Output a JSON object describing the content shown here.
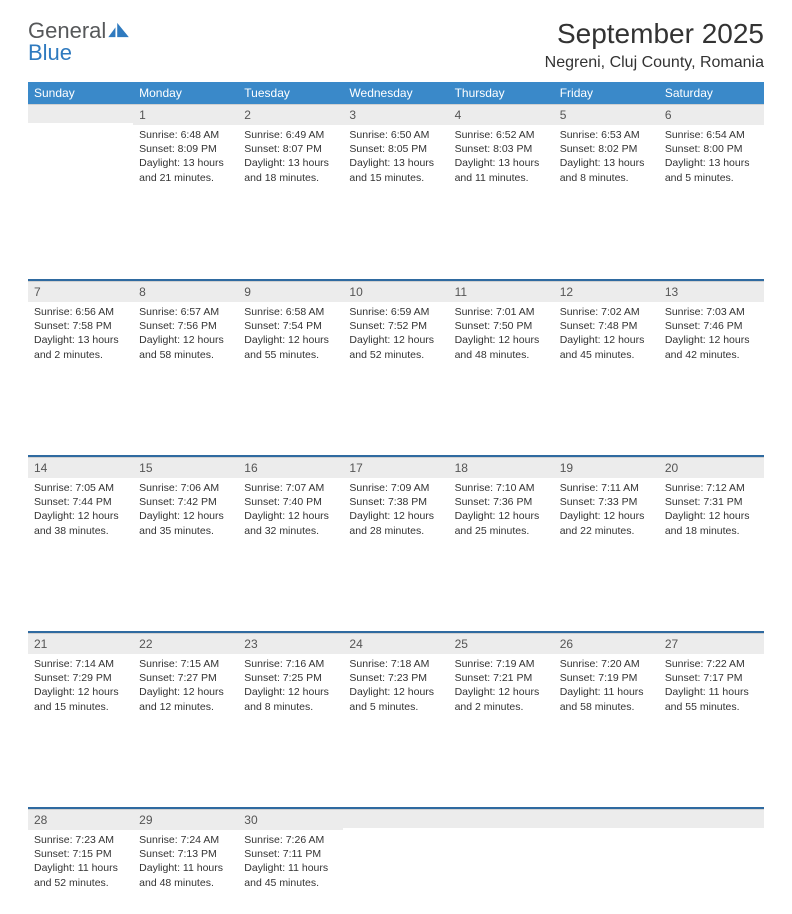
{
  "brand": {
    "word1": "General",
    "word2": "Blue"
  },
  "title": "September 2025",
  "location": "Negreni, Cluj County, Romania",
  "colors": {
    "header_bg": "#3a89c9",
    "header_text": "#ffffff",
    "daynum_bg": "#ececec",
    "separator": "#2f6aa0",
    "brand_gray": "#56585a",
    "brand_blue": "#2f7abf"
  },
  "day_headers": [
    "Sunday",
    "Monday",
    "Tuesday",
    "Wednesday",
    "Thursday",
    "Friday",
    "Saturday"
  ],
  "weeks": [
    [
      {
        "n": "",
        "sunrise": "",
        "sunset": "",
        "daylight": ""
      },
      {
        "n": "1",
        "sunrise": "Sunrise: 6:48 AM",
        "sunset": "Sunset: 8:09 PM",
        "daylight": "Daylight: 13 hours and 21 minutes."
      },
      {
        "n": "2",
        "sunrise": "Sunrise: 6:49 AM",
        "sunset": "Sunset: 8:07 PM",
        "daylight": "Daylight: 13 hours and 18 minutes."
      },
      {
        "n": "3",
        "sunrise": "Sunrise: 6:50 AM",
        "sunset": "Sunset: 8:05 PM",
        "daylight": "Daylight: 13 hours and 15 minutes."
      },
      {
        "n": "4",
        "sunrise": "Sunrise: 6:52 AM",
        "sunset": "Sunset: 8:03 PM",
        "daylight": "Daylight: 13 hours and 11 minutes."
      },
      {
        "n": "5",
        "sunrise": "Sunrise: 6:53 AM",
        "sunset": "Sunset: 8:02 PM",
        "daylight": "Daylight: 13 hours and 8 minutes."
      },
      {
        "n": "6",
        "sunrise": "Sunrise: 6:54 AM",
        "sunset": "Sunset: 8:00 PM",
        "daylight": "Daylight: 13 hours and 5 minutes."
      }
    ],
    [
      {
        "n": "7",
        "sunrise": "Sunrise: 6:56 AM",
        "sunset": "Sunset: 7:58 PM",
        "daylight": "Daylight: 13 hours and 2 minutes."
      },
      {
        "n": "8",
        "sunrise": "Sunrise: 6:57 AM",
        "sunset": "Sunset: 7:56 PM",
        "daylight": "Daylight: 12 hours and 58 minutes."
      },
      {
        "n": "9",
        "sunrise": "Sunrise: 6:58 AM",
        "sunset": "Sunset: 7:54 PM",
        "daylight": "Daylight: 12 hours and 55 minutes."
      },
      {
        "n": "10",
        "sunrise": "Sunrise: 6:59 AM",
        "sunset": "Sunset: 7:52 PM",
        "daylight": "Daylight: 12 hours and 52 minutes."
      },
      {
        "n": "11",
        "sunrise": "Sunrise: 7:01 AM",
        "sunset": "Sunset: 7:50 PM",
        "daylight": "Daylight: 12 hours and 48 minutes."
      },
      {
        "n": "12",
        "sunrise": "Sunrise: 7:02 AM",
        "sunset": "Sunset: 7:48 PM",
        "daylight": "Daylight: 12 hours and 45 minutes."
      },
      {
        "n": "13",
        "sunrise": "Sunrise: 7:03 AM",
        "sunset": "Sunset: 7:46 PM",
        "daylight": "Daylight: 12 hours and 42 minutes."
      }
    ],
    [
      {
        "n": "14",
        "sunrise": "Sunrise: 7:05 AM",
        "sunset": "Sunset: 7:44 PM",
        "daylight": "Daylight: 12 hours and 38 minutes."
      },
      {
        "n": "15",
        "sunrise": "Sunrise: 7:06 AM",
        "sunset": "Sunset: 7:42 PM",
        "daylight": "Daylight: 12 hours and 35 minutes."
      },
      {
        "n": "16",
        "sunrise": "Sunrise: 7:07 AM",
        "sunset": "Sunset: 7:40 PM",
        "daylight": "Daylight: 12 hours and 32 minutes."
      },
      {
        "n": "17",
        "sunrise": "Sunrise: 7:09 AM",
        "sunset": "Sunset: 7:38 PM",
        "daylight": "Daylight: 12 hours and 28 minutes."
      },
      {
        "n": "18",
        "sunrise": "Sunrise: 7:10 AM",
        "sunset": "Sunset: 7:36 PM",
        "daylight": "Daylight: 12 hours and 25 minutes."
      },
      {
        "n": "19",
        "sunrise": "Sunrise: 7:11 AM",
        "sunset": "Sunset: 7:33 PM",
        "daylight": "Daylight: 12 hours and 22 minutes."
      },
      {
        "n": "20",
        "sunrise": "Sunrise: 7:12 AM",
        "sunset": "Sunset: 7:31 PM",
        "daylight": "Daylight: 12 hours and 18 minutes."
      }
    ],
    [
      {
        "n": "21",
        "sunrise": "Sunrise: 7:14 AM",
        "sunset": "Sunset: 7:29 PM",
        "daylight": "Daylight: 12 hours and 15 minutes."
      },
      {
        "n": "22",
        "sunrise": "Sunrise: 7:15 AM",
        "sunset": "Sunset: 7:27 PM",
        "daylight": "Daylight: 12 hours and 12 minutes."
      },
      {
        "n": "23",
        "sunrise": "Sunrise: 7:16 AM",
        "sunset": "Sunset: 7:25 PM",
        "daylight": "Daylight: 12 hours and 8 minutes."
      },
      {
        "n": "24",
        "sunrise": "Sunrise: 7:18 AM",
        "sunset": "Sunset: 7:23 PM",
        "daylight": "Daylight: 12 hours and 5 minutes."
      },
      {
        "n": "25",
        "sunrise": "Sunrise: 7:19 AM",
        "sunset": "Sunset: 7:21 PM",
        "daylight": "Daylight: 12 hours and 2 minutes."
      },
      {
        "n": "26",
        "sunrise": "Sunrise: 7:20 AM",
        "sunset": "Sunset: 7:19 PM",
        "daylight": "Daylight: 11 hours and 58 minutes."
      },
      {
        "n": "27",
        "sunrise": "Sunrise: 7:22 AM",
        "sunset": "Sunset: 7:17 PM",
        "daylight": "Daylight: 11 hours and 55 minutes."
      }
    ],
    [
      {
        "n": "28",
        "sunrise": "Sunrise: 7:23 AM",
        "sunset": "Sunset: 7:15 PM",
        "daylight": "Daylight: 11 hours and 52 minutes."
      },
      {
        "n": "29",
        "sunrise": "Sunrise: 7:24 AM",
        "sunset": "Sunset: 7:13 PM",
        "daylight": "Daylight: 11 hours and 48 minutes."
      },
      {
        "n": "30",
        "sunrise": "Sunrise: 7:26 AM",
        "sunset": "Sunset: 7:11 PM",
        "daylight": "Daylight: 11 hours and 45 minutes."
      },
      {
        "n": "",
        "sunrise": "",
        "sunset": "",
        "daylight": ""
      },
      {
        "n": "",
        "sunrise": "",
        "sunset": "",
        "daylight": ""
      },
      {
        "n": "",
        "sunrise": "",
        "sunset": "",
        "daylight": ""
      },
      {
        "n": "",
        "sunrise": "",
        "sunset": "",
        "daylight": ""
      }
    ]
  ]
}
